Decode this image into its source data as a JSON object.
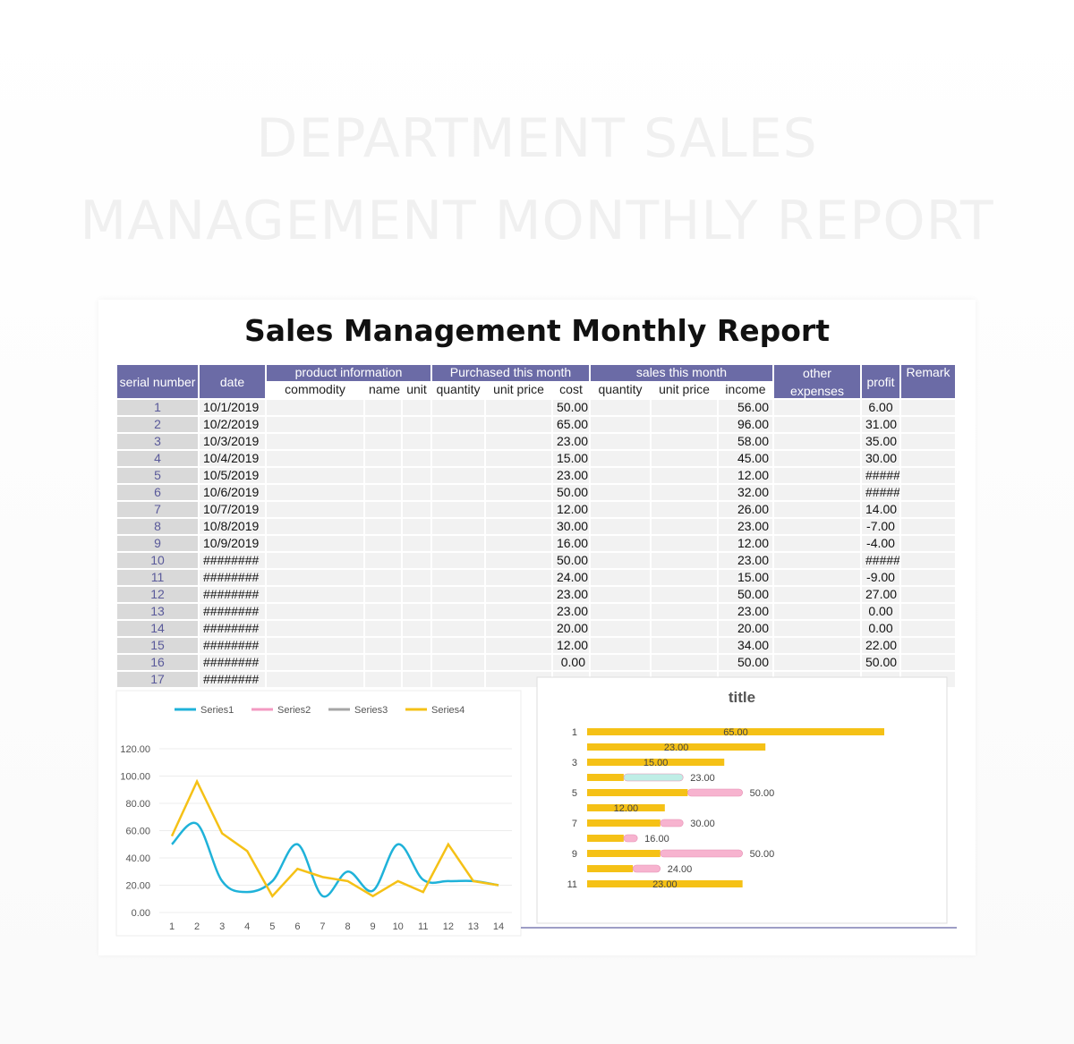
{
  "page_title": [
    "DEPARTMENT SALES",
    "MANAGEMENT MONTHLY REPORT"
  ],
  "sheet_title": "Sales Management Monthly Report",
  "table": {
    "headers": {
      "serial": "serial number",
      "date": "date",
      "product": {
        "label": "product information",
        "sub": [
          "commodity",
          "name",
          "unit"
        ]
      },
      "purchased": {
        "label": "Purchased this month",
        "sub": [
          "quantity",
          "unit price",
          "cost"
        ]
      },
      "sales": {
        "label": "sales this month",
        "sub": [
          "quantity",
          "unit price",
          "income"
        ]
      },
      "other": "other expenses",
      "profit": "profit",
      "remark": "Remark"
    },
    "rows": [
      {
        "serial": "1",
        "date": "10/1/2019",
        "cost": "50.00",
        "income": "56.00",
        "profit": "6.00"
      },
      {
        "serial": "2",
        "date": "10/2/2019",
        "cost": "65.00",
        "income": "96.00",
        "profit": "31.00"
      },
      {
        "serial": "3",
        "date": "10/3/2019",
        "cost": "23.00",
        "income": "58.00",
        "profit": "35.00"
      },
      {
        "serial": "4",
        "date": "10/4/2019",
        "cost": "15.00",
        "income": "45.00",
        "profit": "30.00"
      },
      {
        "serial": "5",
        "date": "10/5/2019",
        "cost": "23.00",
        "income": "12.00",
        "profit": "#####"
      },
      {
        "serial": "6",
        "date": "10/6/2019",
        "cost": "50.00",
        "income": "32.00",
        "profit": "#####"
      },
      {
        "serial": "7",
        "date": "10/7/2019",
        "cost": "12.00",
        "income": "26.00",
        "profit": "14.00"
      },
      {
        "serial": "8",
        "date": "10/8/2019",
        "cost": "30.00",
        "income": "23.00",
        "profit": "-7.00"
      },
      {
        "serial": "9",
        "date": "10/9/2019",
        "cost": "16.00",
        "income": "12.00",
        "profit": "-4.00"
      },
      {
        "serial": "10",
        "date": "########",
        "cost": "50.00",
        "income": "23.00",
        "profit": "#####"
      },
      {
        "serial": "11",
        "date": "########",
        "cost": "24.00",
        "income": "15.00",
        "profit": "-9.00"
      },
      {
        "serial": "12",
        "date": "########",
        "cost": "23.00",
        "income": "50.00",
        "profit": "27.00"
      },
      {
        "serial": "13",
        "date": "########",
        "cost": "23.00",
        "income": "23.00",
        "profit": "0.00"
      },
      {
        "serial": "14",
        "date": "########",
        "cost": "20.00",
        "income": "20.00",
        "profit": "0.00"
      },
      {
        "serial": "15",
        "date": "########",
        "cost": "12.00",
        "income": "34.00",
        "profit": "22.00"
      },
      {
        "serial": "16",
        "date": "########",
        "cost": "0.00",
        "income": "50.00",
        "profit": "50.00"
      },
      {
        "serial": "17",
        "date": "########"
      }
    ]
  },
  "chart_data": [
    {
      "type": "line",
      "x": [
        1,
        2,
        3,
        4,
        5,
        6,
        7,
        8,
        9,
        10,
        11,
        12,
        13,
        14
      ],
      "xticks": [
        1,
        2,
        3,
        4,
        5,
        6,
        7,
        8,
        9,
        10,
        11,
        12,
        13,
        14
      ],
      "xlim": [
        1,
        14
      ],
      "ylim": [
        0,
        120
      ],
      "yticks": [
        {
          "value": 0,
          "label": "0.00"
        },
        {
          "value": 20,
          "label": "20.00"
        },
        {
          "value": 40,
          "label": "40.00"
        },
        {
          "value": 60,
          "label": "60.00"
        },
        {
          "value": 80,
          "label": "80.00"
        },
        {
          "value": 100,
          "label": "100.00"
        },
        {
          "value": 120,
          "label": "120.00"
        }
      ],
      "legend": "top",
      "smooth": [
        true,
        null,
        null,
        false
      ],
      "series": [
        {
          "name": "Series1",
          "color": "#1fb2d9",
          "values": [
            50,
            65,
            23,
            15,
            23,
            50,
            12,
            30,
            16,
            50,
            24,
            23,
            23,
            20
          ]
        },
        {
          "name": "Series2",
          "color": "#f39ac2",
          "values": [
            null,
            null,
            null,
            null,
            null,
            null,
            null,
            null,
            null,
            null,
            null,
            null,
            null,
            null
          ]
        },
        {
          "name": "Series3",
          "color": "#a6a6a6",
          "values": [
            null,
            null,
            null,
            null,
            null,
            null,
            null,
            null,
            null,
            null,
            null,
            null,
            null,
            null
          ]
        },
        {
          "name": "Series4",
          "color": "#f5c116",
          "values": [
            56,
            96,
            58,
            45,
            12,
            32,
            26,
            23,
            12,
            23,
            15,
            50,
            23,
            20
          ]
        }
      ]
    },
    {
      "type": "hbar_stacked",
      "title": "title",
      "categories": [
        "1",
        null,
        "3",
        null,
        "5",
        null,
        "7",
        null,
        "9",
        null,
        "11"
      ],
      "xlim": [
        0,
        65
      ],
      "bar_labels": [
        "65.00",
        "23.00",
        "15.00",
        "23.00",
        "50.00",
        "12.00",
        "30.00",
        "16.00",
        "50.00",
        "24.00",
        "23.00"
      ],
      "series": [
        {
          "color": "#f5c116",
          "values": [
            65,
            39,
            30,
            8,
            22,
            17,
            16,
            8,
            16,
            10,
            34
          ]
        },
        {
          "color": "#bfeee6",
          "values": [
            null,
            null,
            null,
            13,
            null,
            null,
            null,
            null,
            null,
            null,
            null
          ]
        },
        {
          "color": "#f7b3cf",
          "values": [
            null,
            null,
            null,
            null,
            12,
            null,
            5,
            3,
            18,
            6,
            null
          ]
        }
      ]
    }
  ]
}
